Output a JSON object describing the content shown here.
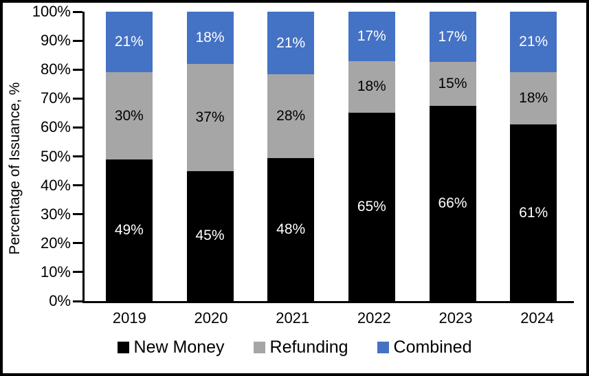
{
  "chart_data": {
    "type": "stacked-bar",
    "stack_mode": "percent",
    "title": "",
    "categories": [
      "2019",
      "2020",
      "2021",
      "2022",
      "2023",
      "2024"
    ],
    "series": [
      {
        "name": "New Money",
        "color": "#000000",
        "label_color": "#FFFFFF",
        "values": [
          49,
          45,
          48,
          65,
          66,
          61
        ]
      },
      {
        "name": "Refunding",
        "color": "#A6A6A6",
        "label_color": "#000000",
        "values": [
          30,
          37,
          28,
          18,
          15,
          18
        ]
      },
      {
        "name": "Combined",
        "color": "#4472C4",
        "label_color": "#FFFFFF",
        "values": [
          21,
          18,
          21,
          17,
          17,
          21
        ]
      }
    ],
    "xlabel": "",
    "ylabel": "Percentage of Issuance, %",
    "ylim": [
      0,
      100
    ],
    "yticks": [
      "0%",
      "10%",
      "20%",
      "30%",
      "40%",
      "50%",
      "60%",
      "70%",
      "80%",
      "90%",
      "100%"
    ],
    "value_suffix": "%",
    "grid": false,
    "legend_position": "bottom",
    "axis_color": "#000000",
    "background_color": "#FFFFFF"
  }
}
